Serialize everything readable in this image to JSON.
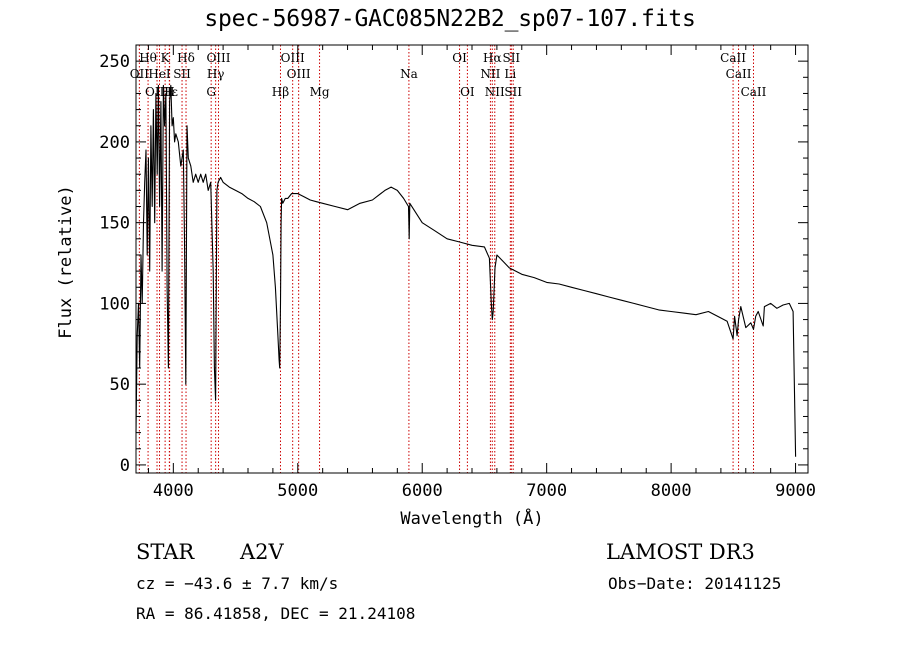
{
  "chart_data": {
    "type": "line",
    "title": "spec-56987-GAC085N22B2_sp07-107.fits",
    "xlabel": "Wavelength (Å)",
    "ylabel": "Flux (relative)",
    "xlim": [
      3700,
      9100
    ],
    "ylim": [
      -5,
      260
    ],
    "x_ticks": [
      4000,
      5000,
      6000,
      7000,
      8000,
      9000
    ],
    "y_ticks": [
      0,
      50,
      100,
      150,
      200,
      250
    ],
    "line_color": "#000000",
    "marker_color": "#cc0000",
    "series": [
      {
        "x": [
          3700,
          3710,
          3720,
          3730,
          3740,
          3750,
          3760,
          3770,
          3780,
          3790,
          3800,
          3810,
          3820,
          3830,
          3840,
          3850,
          3860,
          3870,
          3880,
          3890,
          3900,
          3910,
          3920,
          3930,
          3940,
          3950,
          3960,
          3970,
          3980,
          3990,
          4000,
          4010,
          4020,
          4040,
          4060,
          4080,
          4090,
          4100,
          4110,
          4120,
          4140,
          4160,
          4180,
          4200,
          4220,
          4240,
          4260,
          4280,
          4300,
          4320,
          4330,
          4340,
          4350,
          4360,
          4380,
          4400,
          4450,
          4500,
          4550,
          4600,
          4650,
          4700,
          4750,
          4800,
          4820,
          4840,
          4850,
          4855,
          4861,
          4866,
          4870,
          4880,
          4900,
          4920,
          4950,
          5000,
          5050,
          5100,
          5150,
          5200,
          5300,
          5400,
          5500,
          5600,
          5700,
          5750,
          5800,
          5850,
          5890,
          5895,
          5900,
          6000,
          6100,
          6200,
          6300,
          6400,
          6500,
          6540,
          6555,
          6563,
          6570,
          6585,
          6600,
          6650,
          6700,
          6800,
          6900,
          7000,
          7100,
          7200,
          7300,
          7400,
          7500,
          7600,
          7700,
          7800,
          7900,
          8000,
          8100,
          8200,
          8300,
          8400,
          8450,
          8498,
          8510,
          8530,
          8542,
          8560,
          8600,
          8640,
          8662,
          8680,
          8700,
          8740,
          8750,
          8800,
          8850,
          8900,
          8950,
          8980,
          9000
        ],
        "y": [
          20,
          80,
          100,
          60,
          130,
          100,
          150,
          175,
          195,
          130,
          190,
          120,
          210,
          160,
          220,
          150,
          230,
          180,
          235,
          160,
          225,
          120,
          235,
          210,
          230,
          110,
          60,
          225,
          235,
          210,
          215,
          200,
          205,
          200,
          185,
          195,
          140,
          50,
          210,
          190,
          185,
          175,
          180,
          175,
          180,
          175,
          180,
          170,
          175,
          120,
          60,
          40,
          170,
          175,
          178,
          175,
          172,
          170,
          168,
          165,
          163,
          160,
          150,
          130,
          110,
          80,
          65,
          60,
          100,
          150,
          165,
          162,
          165,
          165,
          168,
          168,
          166,
          164,
          163,
          162,
          160,
          158,
          162,
          164,
          170,
          172,
          170,
          165,
          160,
          140,
          162,
          150,
          145,
          140,
          138,
          136,
          135,
          128,
          100,
          90,
          95,
          122,
          130,
          126,
          122,
          118,
          116,
          113,
          112,
          110,
          108,
          106,
          104,
          102,
          100,
          98,
          96,
          95,
          94,
          93,
          95,
          91,
          89,
          78,
          92,
          80,
          90,
          98,
          85,
          88,
          84,
          92,
          95,
          86,
          98,
          100,
          97,
          99,
          100,
          95,
          5
        ]
      }
    ],
    "annotations": [
      {
        "label": "Hθ",
        "x": 3797
      },
      {
        "label": "OII",
        "x": 3727
      },
      {
        "label": "OIII",
        "x": 3869
      },
      {
        "label": "K",
        "x": 3934
      },
      {
        "label": "HeI",
        "x": 3889
      },
      {
        "label": "Hε",
        "x": 3970
      },
      {
        "label": "H",
        "x": 3968
      },
      {
        "label": "SII",
        "x": 4070
      },
      {
        "label": "Hδ",
        "x": 4102
      },
      {
        "label": "G",
        "x": 4304
      },
      {
        "label": "OIII",
        "x": 4363
      },
      {
        "label": "Hγ",
        "x": 4340
      },
      {
        "label": "Hβ",
        "x": 4861
      },
      {
        "label": "OIII",
        "x": 4959
      },
      {
        "label": "OIII",
        "x": 5007
      },
      {
        "label": "Mg",
        "x": 5175
      },
      {
        "label": "Na",
        "x": 5893
      },
      {
        "label": "OI",
        "x": 6300
      },
      {
        "label": "OI",
        "x": 6363
      },
      {
        "label": "Hα",
        "x": 6563
      },
      {
        "label": "NII",
        "x": 6548
      },
      {
        "label": "NII",
        "x": 6583
      },
      {
        "label": "SII",
        "x": 6716
      },
      {
        "label": "Li",
        "x": 6708
      },
      {
        "label": "SII",
        "x": 6731
      },
      {
        "label": "CaII",
        "x": 8498
      },
      {
        "label": "CaII",
        "x": 8542
      },
      {
        "label": "CaII",
        "x": 8662
      }
    ]
  },
  "info": {
    "class_label": "STAR",
    "subclass": "A2V",
    "survey": "LAMOST DR3",
    "cz": "cz = −43.6 ± 7.7 km/s",
    "obs_date": "Obs−Date: 20141125",
    "coords": "RA =  86.41858, DEC =  21.24108"
  }
}
